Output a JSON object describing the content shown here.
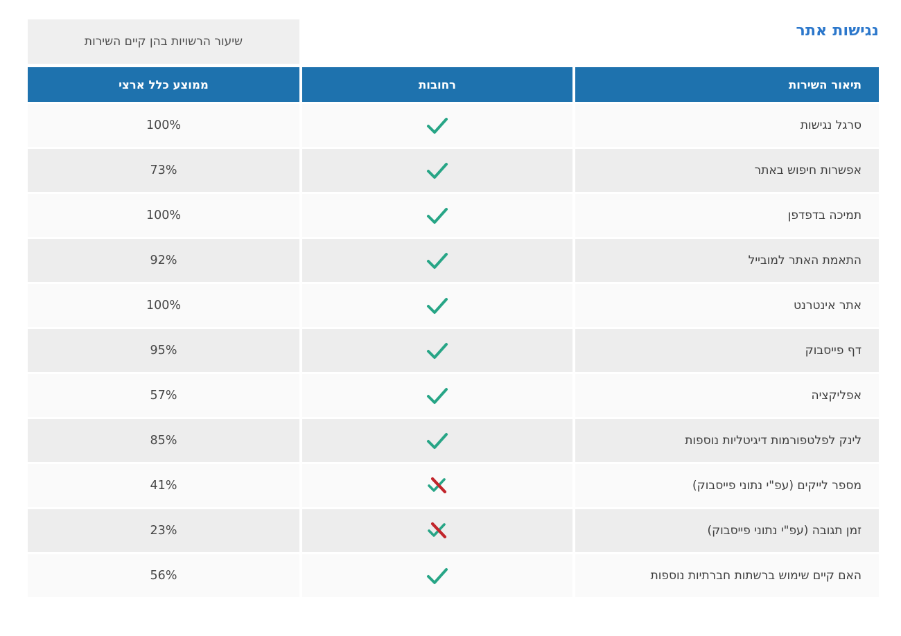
{
  "title": "נגישות אתר",
  "note": "שיעור הרשויות בהן קיים השירות",
  "columns": {
    "service": "תיאור השירות",
    "city": "רחובות",
    "national_average": "ממוצע כלל ארצי"
  },
  "rows": [
    {
      "service": "סרגל נגישות",
      "city_status": "yes",
      "national_average": "100%"
    },
    {
      "service": "אפשרות חיפוש באתר",
      "city_status": "yes",
      "national_average": "73%"
    },
    {
      "service": "תמיכה בדפדפן",
      "city_status": "yes",
      "national_average": "100%"
    },
    {
      "service": "התאמת האתר למובייל",
      "city_status": "yes",
      "national_average": "92%"
    },
    {
      "service": "אתר אינטרנט",
      "city_status": "yes",
      "national_average": "100%"
    },
    {
      "service": "דף פייסבוק",
      "city_status": "yes",
      "national_average": "95%"
    },
    {
      "service": "אפליקציה",
      "city_status": "yes",
      "national_average": "57%"
    },
    {
      "service": "לינק לפלטפורמות דיגיטליות נוספות",
      "city_status": "yes",
      "national_average": "85%"
    },
    {
      "service": "מספר לייקים (עפ\"י נתוני פייסבוק)",
      "city_status": "no",
      "national_average": "41%"
    },
    {
      "service": "זמן תגובה (עפ\"י נתוני פייסבוק)",
      "city_status": "no",
      "national_average": "23%"
    },
    {
      "service": "האם קיים שימוש ברשתות חברתיות נוספות",
      "city_status": "yes",
      "national_average": "56%"
    }
  ],
  "icons": {
    "yes": "check-icon",
    "no": "crossed-check-icon"
  },
  "colors": {
    "header_bg": "#1e72ae",
    "title": "#2b77cb",
    "note_bg": "#efefef",
    "row_light": "#fafafa",
    "row_dark": "#ededed",
    "check": "#27a586",
    "cross": "#c2262c"
  }
}
